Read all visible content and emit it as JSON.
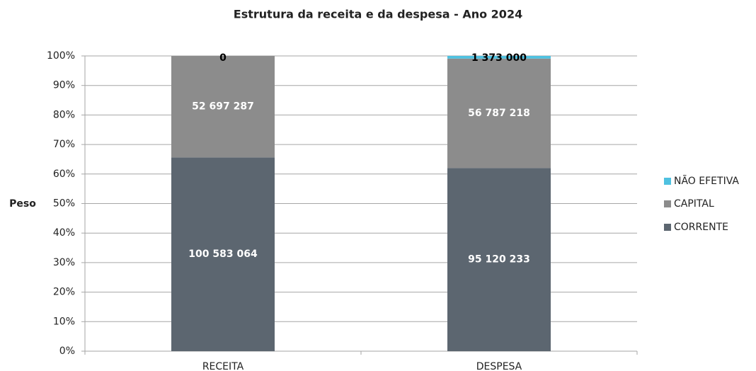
{
  "chart_data": {
    "type": "bar",
    "stacked_percent": true,
    "title": "Estrutura da receita e da despesa - Ano 2024",
    "y_label": "Peso",
    "categories": [
      "RECEITA",
      "DESPESA"
    ],
    "series": [
      {
        "name": "CORRENTE",
        "color": "#5c6670",
        "label_color": "#ffffff",
        "values": [
          100583064,
          95120233
        ],
        "value_labels": [
          "100 583 064",
          "95 120 233"
        ]
      },
      {
        "name": "CAPITAL",
        "color": "#8c8c8c",
        "label_color": "#ffffff",
        "values": [
          52697287,
          56787218
        ],
        "value_labels": [
          "52 697 287",
          "56 787 218"
        ]
      },
      {
        "name": "NÃO EFETIVA",
        "color": "#4fc1e0",
        "label_color": "#000000",
        "values": [
          0,
          1373000
        ],
        "value_labels": [
          "0",
          "1 373 000"
        ]
      }
    ],
    "ylim": [
      0,
      100
    ],
    "yticks": [
      {
        "value": 0,
        "label": "0%"
      },
      {
        "value": 10,
        "label": "10%"
      },
      {
        "value": 20,
        "label": "20%"
      },
      {
        "value": 30,
        "label": "30%"
      },
      {
        "value": 40,
        "label": "40%"
      },
      {
        "value": 50,
        "label": "50%"
      },
      {
        "value": 60,
        "label": "60%"
      },
      {
        "value": 70,
        "label": "70%"
      },
      {
        "value": 80,
        "label": "80%"
      },
      {
        "value": 90,
        "label": "90%"
      },
      {
        "value": 100,
        "label": "100%"
      }
    ],
    "grid": true,
    "legend": "right"
  }
}
